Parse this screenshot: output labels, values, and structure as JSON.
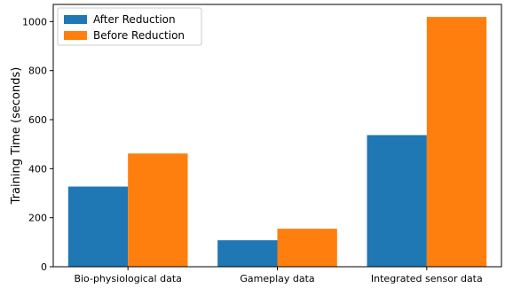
{
  "chart_data": {
    "type": "bar",
    "title": "",
    "xlabel": "",
    "ylabel": "Training Time (seconds)",
    "categories": [
      "Bio-physiological data",
      "Gameplay data",
      "Integrated sensor data"
    ],
    "series": [
      {
        "name": "After Reduction",
        "values": [
          327,
          108,
          537
        ],
        "color": "#1f77b4"
      },
      {
        "name": "Before Reduction",
        "values": [
          462,
          155,
          1019
        ],
        "color": "#ff7f0e"
      }
    ],
    "ylim": [
      0,
      1070
    ],
    "yticks": [
      0,
      200,
      400,
      600,
      800,
      1000
    ],
    "grid": false,
    "legend_position": "top-left"
  }
}
